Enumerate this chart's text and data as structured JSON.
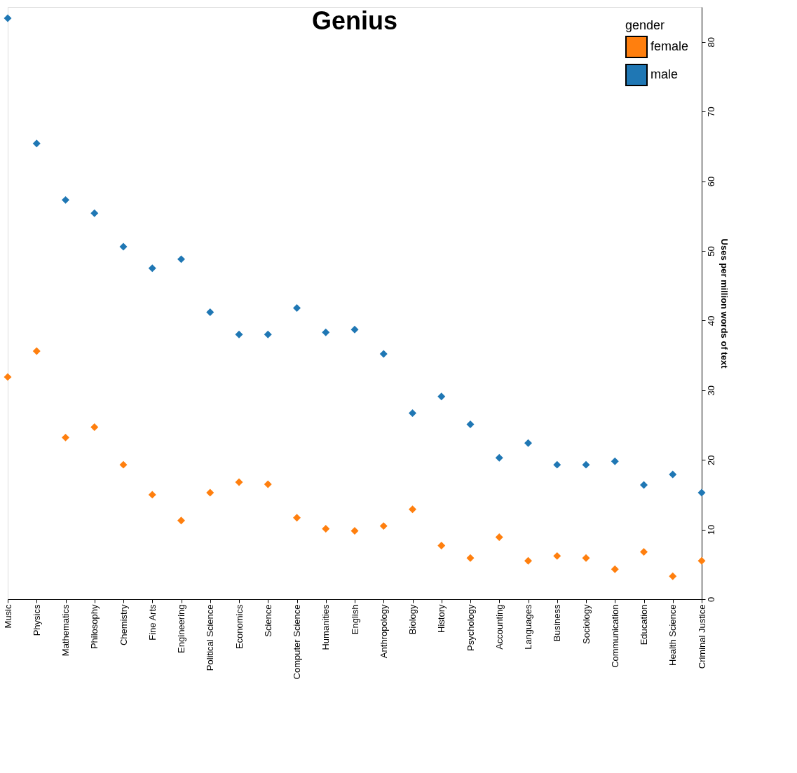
{
  "chart_data": {
    "type": "scatter",
    "title": "Genius",
    "ylabel": "Uses per million words of text",
    "legend_title": "gender",
    "categories": [
      "Music",
      "Physics",
      "Mathematics",
      "Philosophy",
      "Chemistry",
      "Fine Arts",
      "Engineering",
      "Political Science",
      "Economics",
      "Science",
      "Computer Science",
      "Humanities",
      "English",
      "Anthropology",
      "Biology",
      "History",
      "Psychology",
      "Accounting",
      "Languages",
      "Business",
      "Sociology",
      "Communication",
      "Education",
      "Health Science",
      "Criminal Justice"
    ],
    "series": [
      {
        "name": "female",
        "color": "#ff7f0e",
        "values": [
          31.9,
          35.6,
          23.2,
          24.7,
          19.3,
          15.0,
          11.3,
          15.3,
          16.8,
          16.5,
          11.7,
          10.1,
          9.8,
          10.5,
          12.9,
          7.7,
          5.9,
          8.9,
          5.5,
          6.2,
          5.9,
          4.3,
          6.8,
          3.3,
          5.5
        ]
      },
      {
        "name": "male",
        "color": "#1f77b4",
        "values": [
          83.4,
          65.4,
          57.3,
          55.4,
          50.6,
          47.5,
          48.8,
          41.2,
          38.0,
          38.0,
          41.8,
          38.3,
          38.7,
          35.2,
          26.7,
          29.1,
          25.1,
          20.3,
          22.4,
          19.3,
          19.3,
          19.8,
          16.4,
          17.9,
          15.3
        ]
      }
    ],
    "ylim": [
      0,
      85
    ],
    "yticks": [
      0,
      10,
      20,
      30,
      40,
      50,
      60,
      70,
      80
    ],
    "grid": false,
    "legend": "top right",
    "marker": "diamond"
  }
}
